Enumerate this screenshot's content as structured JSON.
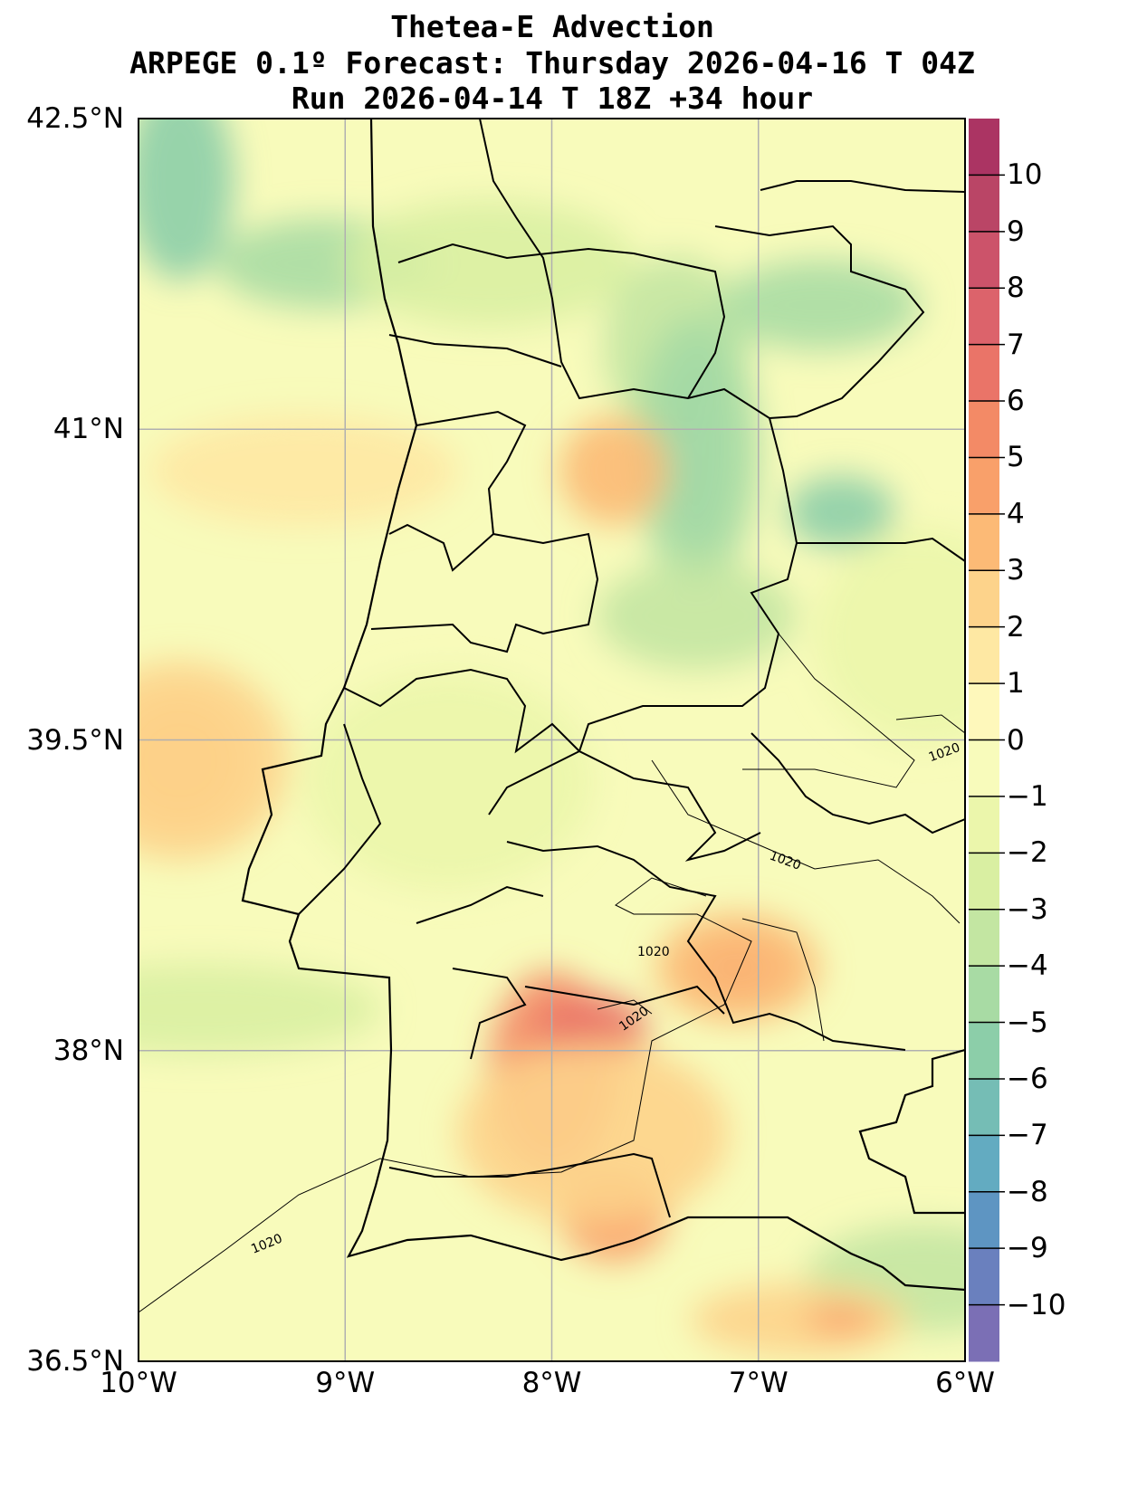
{
  "title": {
    "line1": "Thetea-E Advection",
    "line2": "ARPEGE 0.1º Forecast: Thursday 2026-04-16 T 04Z",
    "line3": "Run 2026-04-14 T 18Z +34 hour"
  },
  "axes": {
    "lat_labels": [
      "42.5°N",
      "41°N",
      "39.5°N",
      "38°N",
      "36.5°N"
    ],
    "lat_values": [
      42.5,
      41,
      39.5,
      38,
      36.5
    ],
    "lon_labels": [
      "10°W",
      "9°W",
      "8°W",
      "7°W",
      "6°W"
    ],
    "lon_values": [
      -10,
      -9,
      -8,
      -7,
      -6
    ]
  },
  "colorbar": {
    "range": [
      -11,
      11
    ],
    "tick_values": [
      10,
      9,
      8,
      7,
      6,
      5,
      4,
      3,
      2,
      1,
      0,
      -1,
      -2,
      -3,
      -4,
      -5,
      -6,
      -7,
      -8,
      -9,
      -10
    ],
    "tick_labels": [
      "10",
      "9",
      "8",
      "7",
      "6",
      "5",
      "4",
      "3",
      "2",
      "1",
      "0",
      "−1",
      "−2",
      "−3",
      "−4",
      "−5",
      "−6",
      "−7",
      "−8",
      "−9",
      "−10"
    ],
    "colors": [
      "#7b6fb5",
      "#6a80be",
      "#5e95c2",
      "#63abc1",
      "#75bdb5",
      "#8ccea9",
      "#a8dba4",
      "#c3e6a2",
      "#d9efa2",
      "#ebf6ab",
      "#f8fbbb",
      "#fef8bb",
      "#fee8a3",
      "#fdd38b",
      "#fcba76",
      "#f9a06a",
      "#f38a66",
      "#ea7468",
      "#dc636b",
      "#cc536a",
      "#ba4566",
      "#ab3463"
    ]
  },
  "isobar_labels": [
    "1020",
    "1020",
    "1020",
    "1020",
    "1020"
  ]
}
